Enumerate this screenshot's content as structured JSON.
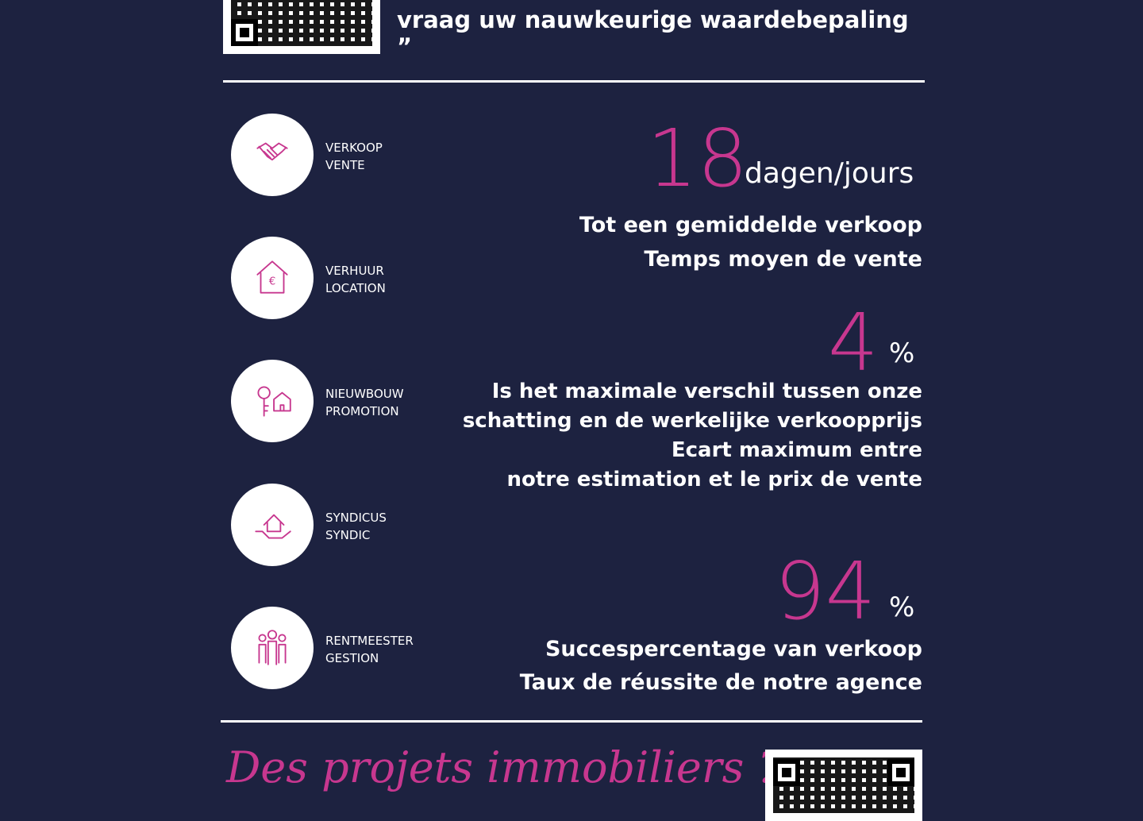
{
  "header": {
    "quote_line": "vraag uw nauwkeurige waardebepaling ”"
  },
  "services": [
    {
      "icon": "handshake-icon",
      "line1": "VERKOOP",
      "line2": "VENTE"
    },
    {
      "icon": "house-euro-icon",
      "line1": "VERHUUR",
      "line2": "LOCATION"
    },
    {
      "icon": "house-key-icon",
      "line1": "NIEUWBOUW",
      "line2": "PROMOTION"
    },
    {
      "icon": "hand-house-icon",
      "line1": "SYNDICUS",
      "line2": "SYNDIC"
    },
    {
      "icon": "people-icon",
      "line1": "RENTMEESTER",
      "line2": "GESTION"
    }
  ],
  "stats": [
    {
      "value": "18",
      "unit": "dagen/jours",
      "lines": [
        "Tot een gemiddelde verkoop",
        "Temps moyen de vente"
      ]
    },
    {
      "value": "4",
      "unit": "%",
      "lines": [
        "Is het maximale verschil tussen onze",
        "schatting en de werkelijke verkoopprijs",
        "Ecart maximum entre",
        "notre estimation et le prix de vente"
      ]
    },
    {
      "value": "94",
      "unit": "%",
      "lines": [
        "Succespercentage van verkoop",
        "Taux de réussite de notre agence"
      ]
    }
  ],
  "footer": {
    "slogan": "Des projets immobiliers ?"
  },
  "colors": {
    "background": "#1d2240",
    "accent": "#c7378f"
  }
}
